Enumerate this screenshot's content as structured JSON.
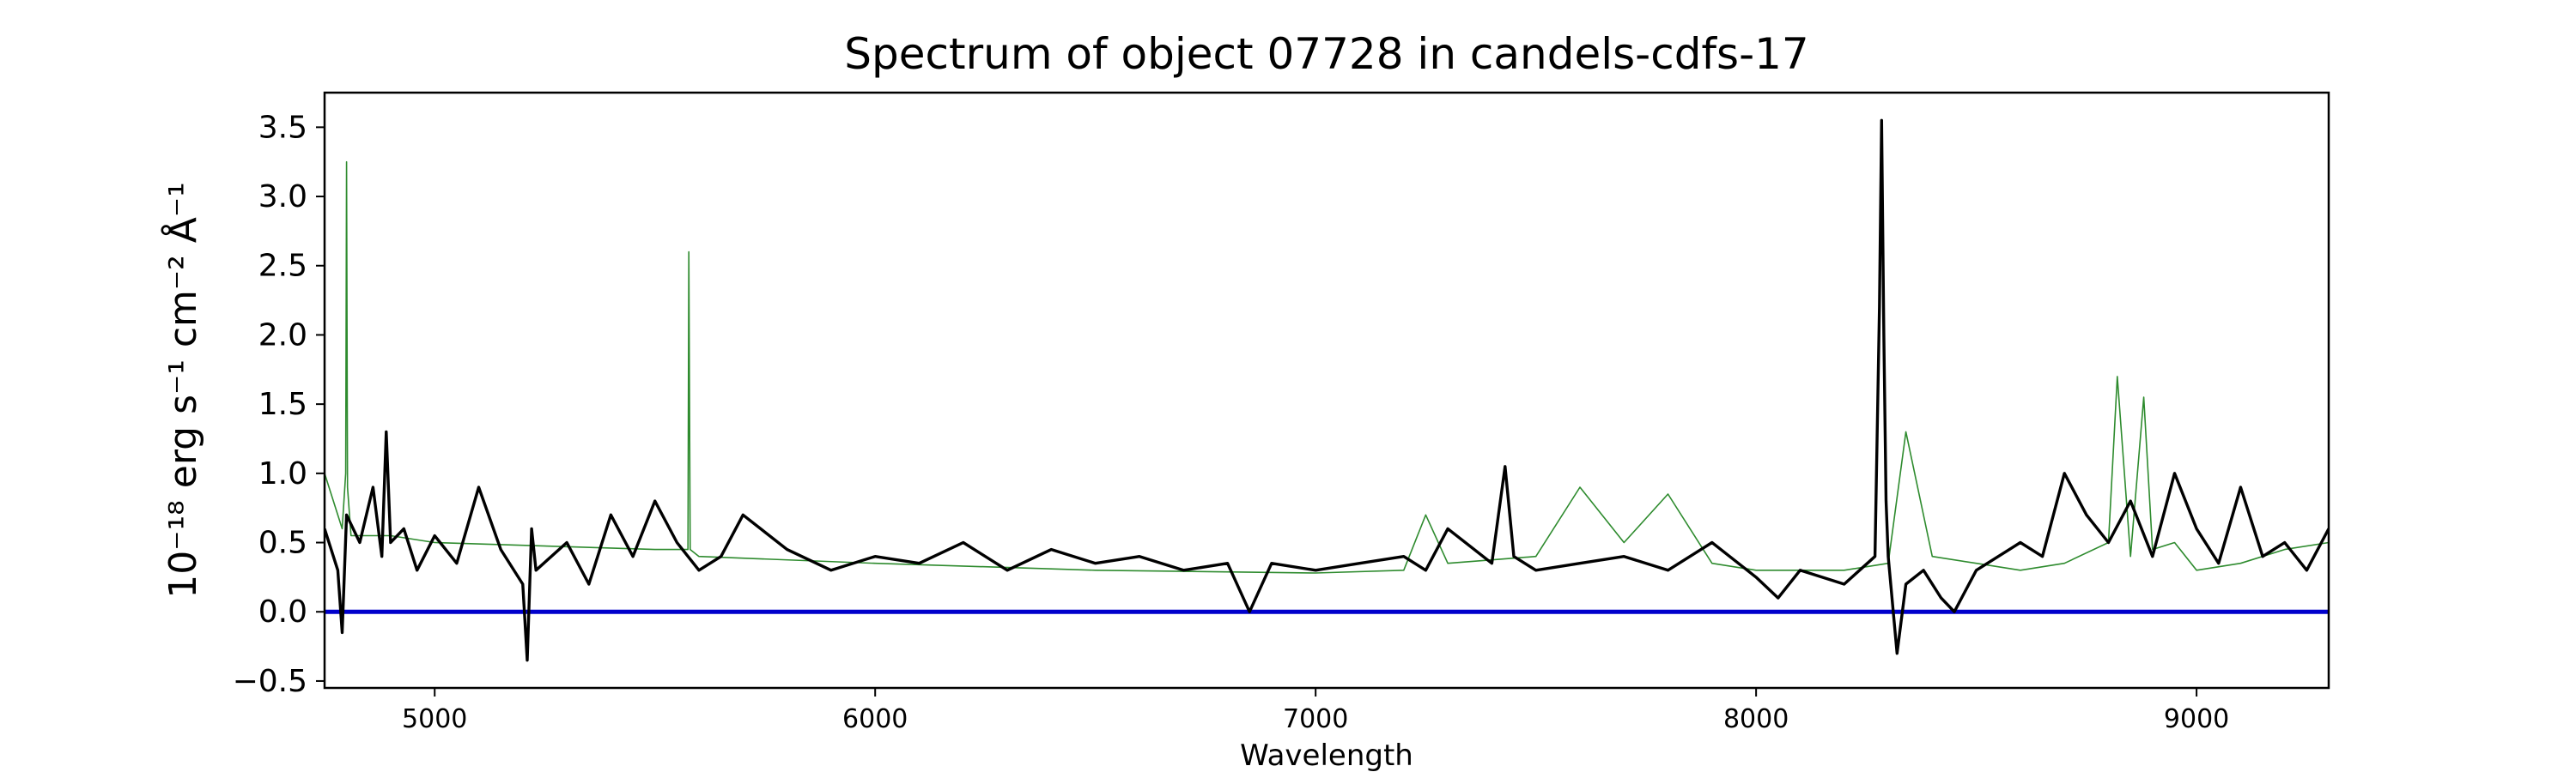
{
  "chart_data": {
    "type": "line",
    "title": "Spectrum of object 07728 in candels-cdfs-17",
    "xlabel": "Wavelength",
    "ylabel": "10⁻¹⁸ erg s⁻¹ cm⁻² Å⁻¹",
    "xlim": [
      4750,
      9300
    ],
    "ylim": [
      -0.55,
      3.75
    ],
    "x_ticks": [
      5000,
      6000,
      7000,
      8000,
      9000
    ],
    "x_tick_labels": [
      "5000",
      "6000",
      "7000",
      "8000",
      "9000"
    ],
    "y_ticks": [
      -0.5,
      0.0,
      0.5,
      1.0,
      1.5,
      2.0,
      2.5,
      3.0,
      3.5
    ],
    "y_tick_labels": [
      "−0.5",
      "0.0",
      "0.5",
      "1.0",
      "1.5",
      "2.0",
      "2.5",
      "3.0",
      "3.5"
    ],
    "grid": false,
    "colors": {
      "spectrum": "#000000",
      "sky": "#2e8b2e",
      "zero_line": "#0000cc",
      "frame": "#000000"
    },
    "series": [
      {
        "role": "spectrum",
        "x": [
          4750,
          4780,
          4790,
          4800,
          4830,
          4860,
          4880,
          4890,
          4900,
          4930,
          4960,
          5000,
          5050,
          5100,
          5150,
          5200,
          5210,
          5220,
          5230,
          5300,
          5350,
          5400,
          5450,
          5500,
          5550,
          5600,
          5650,
          5700,
          5800,
          5900,
          6000,
          6100,
          6200,
          6300,
          6400,
          6500,
          6600,
          6700,
          6800,
          6850,
          6900,
          7000,
          7100,
          7200,
          7250,
          7300,
          7400,
          7430,
          7450,
          7500,
          7600,
          7700,
          7800,
          7900,
          8000,
          8050,
          8100,
          8200,
          8270,
          8280,
          8285,
          8290,
          8295,
          8300,
          8320,
          8340,
          8380,
          8420,
          8450,
          8500,
          8600,
          8650,
          8700,
          8750,
          8800,
          8850,
          8900,
          8950,
          9000,
          9050,
          9100,
          9150,
          9200,
          9250,
          9300
        ],
        "y": [
          0.6,
          0.3,
          -0.15,
          0.7,
          0.5,
          0.9,
          0.4,
          1.3,
          0.5,
          0.6,
          0.3,
          0.55,
          0.35,
          0.9,
          0.45,
          0.2,
          -0.35,
          0.6,
          0.3,
          0.5,
          0.2,
          0.7,
          0.4,
          0.8,
          0.5,
          0.3,
          0.4,
          0.7,
          0.45,
          0.3,
          0.4,
          0.35,
          0.5,
          0.3,
          0.45,
          0.35,
          0.4,
          0.3,
          0.35,
          0.0,
          0.35,
          0.3,
          0.35,
          0.4,
          0.3,
          0.6,
          0.35,
          1.05,
          0.4,
          0.3,
          0.35,
          0.4,
          0.3,
          0.5,
          0.25,
          0.1,
          0.3,
          0.2,
          0.4,
          2.2,
          3.55,
          2.0,
          0.8,
          0.4,
          -0.3,
          0.2,
          0.3,
          0.1,
          0.0,
          0.3,
          0.5,
          0.4,
          1.0,
          0.7,
          0.5,
          0.8,
          0.4,
          1.0,
          0.6,
          0.35,
          0.9,
          0.4,
          0.5,
          0.3,
          0.6
        ]
      },
      {
        "role": "sky",
        "x": [
          4750,
          4790,
          4798,
          4800,
          4802,
          4810,
          4900,
          5000,
          5500,
          5575,
          5577,
          5580,
          5600,
          6000,
          6500,
          7000,
          7200,
          7250,
          7300,
          7500,
          7600,
          7700,
          7800,
          7900,
          8000,
          8200,
          8300,
          8340,
          8400,
          8500,
          8600,
          8700,
          8800,
          8820,
          8850,
          8880,
          8900,
          8950,
          9000,
          9100,
          9200,
          9300
        ],
        "y": [
          1.0,
          0.6,
          1.0,
          3.25,
          0.9,
          0.55,
          0.55,
          0.5,
          0.45,
          0.45,
          2.6,
          0.45,
          0.4,
          0.35,
          0.3,
          0.28,
          0.3,
          0.7,
          0.35,
          0.4,
          0.9,
          0.5,
          0.85,
          0.35,
          0.3,
          0.3,
          0.35,
          1.3,
          0.4,
          0.35,
          0.3,
          0.35,
          0.5,
          1.7,
          0.4,
          1.55,
          0.45,
          0.5,
          0.3,
          0.35,
          0.45,
          0.5
        ]
      }
    ],
    "reference_line": {
      "y": 0.0
    }
  }
}
